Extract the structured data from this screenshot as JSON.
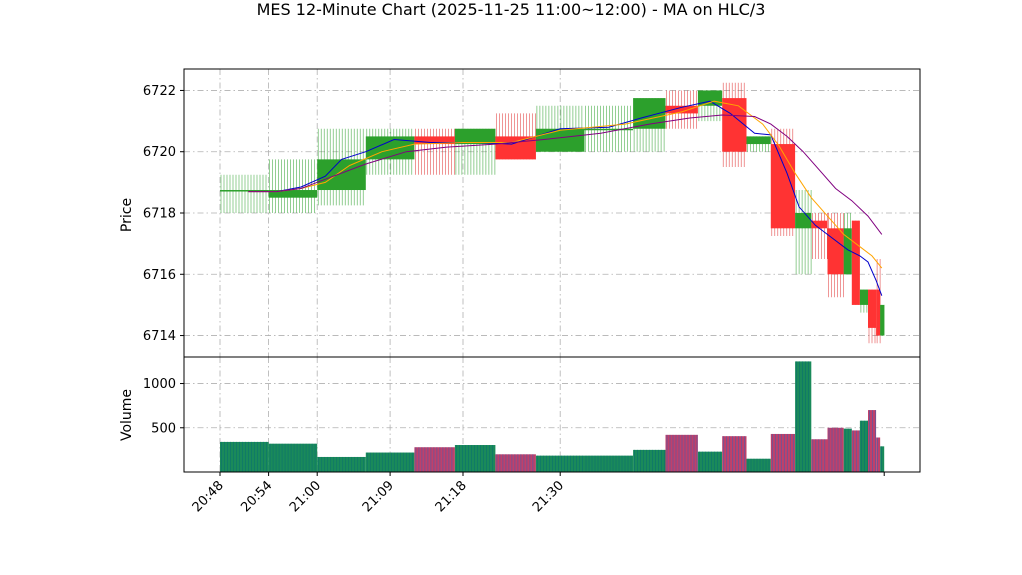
{
  "chart_data": {
    "type": "candlestick",
    "title": "MES 12-Minute Chart (2025-11-25 11:00~12:00) - MA on HLC/3",
    "price_panel": {
      "ylabel": "Price",
      "ylim": [
        6713.3,
        6722.7
      ],
      "yticks": [
        "6714",
        "6716",
        "6718",
        "6720",
        "6722"
      ],
      "grid": true
    },
    "volume_panel": {
      "ylabel": "Volume",
      "ylim": [
        0,
        1300
      ],
      "yticks": [
        "500",
        "1000"
      ],
      "grid": true
    },
    "x_ticks": [
      {
        "label": "20:48",
        "bar": 0
      },
      {
        "label": "20:54",
        "bar": 6
      },
      {
        "label": "21:00",
        "bar": 12
      },
      {
        "label": "21:09",
        "bar": 21
      },
      {
        "label": "21:18",
        "bar": 30
      },
      {
        "label": "21:30",
        "bar": 42
      }
    ],
    "bars": [
      {
        "index": 0,
        "width": 6,
        "open": 6718.75,
        "close": 6718.75,
        "high": 6719.25,
        "low": 6718.0,
        "volume": 340
      },
      {
        "index": 6,
        "width": 6,
        "open": 6718.5,
        "close": 6718.75,
        "high": 6719.75,
        "low": 6718.0,
        "volume": 320
      },
      {
        "index": 12,
        "width": 6,
        "open": 6718.75,
        "close": 6719.75,
        "high": 6720.75,
        "low": 6718.25,
        "volume": 170
      },
      {
        "index": 18,
        "width": 6,
        "open": 6719.75,
        "close": 6720.5,
        "high": 6720.75,
        "low": 6719.25,
        "volume": 220
      },
      {
        "index": 24,
        "width": 5,
        "open": 6720.5,
        "close": 6720.25,
        "high": 6720.75,
        "low": 6719.25,
        "volume": 280
      },
      {
        "index": 29,
        "width": 5,
        "open": 6720.25,
        "close": 6720.75,
        "high": 6720.75,
        "low": 6719.25,
        "volume": 305
      },
      {
        "index": 34,
        "width": 5,
        "open": 6720.5,
        "close": 6719.75,
        "high": 6721.25,
        "low": 6719.75,
        "volume": 200
      },
      {
        "index": 39,
        "width": 6,
        "open": 6720.0,
        "close": 6720.75,
        "high": 6721.5,
        "low": 6720.0,
        "volume": 185
      },
      {
        "index": 45,
        "width": 6,
        "open": 6720.75,
        "close": 6720.75,
        "high": 6721.5,
        "low": 6720.0,
        "volume": 185
      },
      {
        "index": 51,
        "width": 4,
        "open": 6720.75,
        "close": 6721.75,
        "high": 6721.75,
        "low": 6720.0,
        "volume": 250
      },
      {
        "index": 55,
        "width": 4,
        "open": 6721.5,
        "close": 6721.25,
        "high": 6722.0,
        "low": 6720.75,
        "volume": 420
      },
      {
        "index": 59,
        "width": 3,
        "open": 6721.5,
        "close": 6722.0,
        "high": 6722.0,
        "low": 6721.0,
        "volume": 230
      },
      {
        "index": 62,
        "width": 3,
        "open": 6721.75,
        "close": 6720.0,
        "high": 6722.25,
        "low": 6719.5,
        "volume": 405
      },
      {
        "index": 65,
        "width": 3,
        "open": 6720.25,
        "close": 6720.5,
        "high": 6720.5,
        "low": 6720.0,
        "volume": 150
      },
      {
        "index": 68,
        "width": 3,
        "open": 6720.25,
        "close": 6717.5,
        "high": 6720.75,
        "low": 6717.25,
        "volume": 430
      },
      {
        "index": 71,
        "width": 2,
        "open": 6717.5,
        "close": 6718.0,
        "high": 6718.75,
        "low": 6716.0,
        "volume": 1250
      },
      {
        "index": 73,
        "width": 2,
        "open": 6717.75,
        "close": 6717.5,
        "high": 6718.0,
        "low": 6716.5,
        "volume": 370
      },
      {
        "index": 75,
        "width": 2,
        "open": 6717.5,
        "close": 6716.0,
        "high": 6718.0,
        "low": 6715.25,
        "volume": 500
      },
      {
        "index": 77,
        "width": 1,
        "open": 6716.0,
        "close": 6717.5,
        "high": 6718.0,
        "low": 6716.0,
        "volume": 490
      },
      {
        "index": 78,
        "width": 1,
        "open": 6717.75,
        "close": 6715.0,
        "high": 6717.75,
        "low": 6715.0,
        "volume": 470
      },
      {
        "index": 79,
        "width": 1,
        "open": 6715.0,
        "close": 6715.5,
        "high": 6715.5,
        "low": 6714.75,
        "volume": 580
      },
      {
        "index": 80,
        "width": 1,
        "open": 6715.5,
        "close": 6714.25,
        "high": 6715.5,
        "low": 6713.75,
        "volume": 700
      },
      {
        "index": 81,
        "width": 0.5,
        "open": 6715.5,
        "close": 6714.0,
        "high": 6716.5,
        "low": 6713.75,
        "volume": 390
      },
      {
        "index": 81.5,
        "width": 0.5,
        "open": 6714.0,
        "close": 6715.0,
        "high": 6715.0,
        "low": 6714.0,
        "volume": 290
      }
    ],
    "ma_lines": [
      {
        "color": "#0000cc",
        "points": [
          [
            3.5,
            6718.7
          ],
          [
            7,
            6718.7
          ],
          [
            10,
            6718.85
          ],
          [
            13,
            6719.2
          ],
          [
            15,
            6719.75
          ],
          [
            18,
            6720.0
          ],
          [
            21.5,
            6720.4
          ],
          [
            26,
            6720.3
          ],
          [
            32,
            6720.3
          ],
          [
            36,
            6720.25
          ],
          [
            42,
            6720.75
          ],
          [
            48,
            6720.8
          ],
          [
            52,
            6721.1
          ],
          [
            57,
            6721.45
          ],
          [
            60.5,
            6721.65
          ],
          [
            63,
            6721.25
          ],
          [
            66,
            6720.6
          ],
          [
            68,
            6720.55
          ],
          [
            70,
            6719.3
          ],
          [
            71.5,
            6718.2
          ],
          [
            73.5,
            6717.6
          ],
          [
            75.5,
            6717.2
          ],
          [
            77.5,
            6716.8
          ],
          [
            79,
            6716.6
          ],
          [
            80,
            6716.4
          ],
          [
            81,
            6715.8
          ],
          [
            81.7,
            6715.3
          ]
        ]
      },
      {
        "color": "#ffa500",
        "points": [
          [
            3.5,
            6718.7
          ],
          [
            7,
            6718.7
          ],
          [
            10,
            6718.8
          ],
          [
            13,
            6719.0
          ],
          [
            16,
            6719.55
          ],
          [
            20,
            6720.0
          ],
          [
            24,
            6720.25
          ],
          [
            30,
            6720.3
          ],
          [
            36,
            6720.3
          ],
          [
            42,
            6720.7
          ],
          [
            50,
            6720.9
          ],
          [
            57,
            6721.3
          ],
          [
            61,
            6721.65
          ],
          [
            64,
            6721.5
          ],
          [
            67,
            6720.9
          ],
          [
            69,
            6720.2
          ],
          [
            71,
            6719.3
          ],
          [
            73,
            6718.5
          ],
          [
            75,
            6717.9
          ],
          [
            77,
            6717.3
          ],
          [
            79,
            6716.9
          ],
          [
            80.5,
            6716.6
          ],
          [
            81.7,
            6716.2
          ]
        ]
      },
      {
        "color": "#800080",
        "points": [
          [
            3.5,
            6718.7
          ],
          [
            7,
            6718.7
          ],
          [
            10,
            6718.8
          ],
          [
            14,
            6719.2
          ],
          [
            18,
            6719.6
          ],
          [
            23,
            6720.0
          ],
          [
            28,
            6720.15
          ],
          [
            34,
            6720.25
          ],
          [
            40,
            6720.4
          ],
          [
            47,
            6720.6
          ],
          [
            53,
            6720.9
          ],
          [
            58,
            6721.1
          ],
          [
            62,
            6721.2
          ],
          [
            66,
            6721.15
          ],
          [
            68,
            6720.9
          ],
          [
            70,
            6720.5
          ],
          [
            72,
            6720.0
          ],
          [
            74,
            6719.4
          ],
          [
            76,
            6718.8
          ],
          [
            78,
            6718.4
          ],
          [
            80,
            6717.9
          ],
          [
            81.7,
            6717.3
          ]
        ]
      }
    ]
  }
}
